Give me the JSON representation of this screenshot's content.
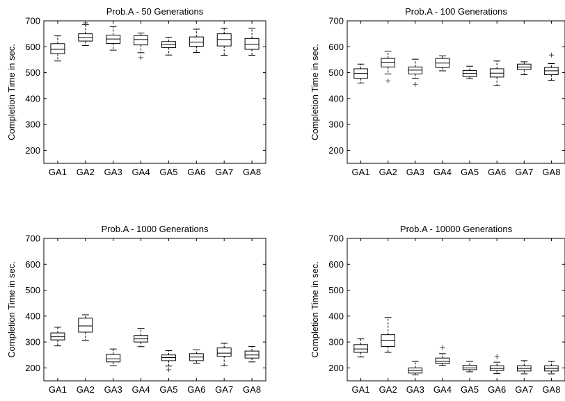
{
  "chart_data": [
    {
      "type": "box",
      "title": "Prob.A - 50 Generations",
      "xlabel": "",
      "ylabel": "Completion Time in sec.",
      "ylim": [
        150,
        700
      ],
      "yticks": [
        200,
        300,
        400,
        500,
        600,
        700
      ],
      "categories": [
        "GA1",
        "GA2",
        "GA3",
        "GA4",
        "GA5",
        "GA6",
        "GA7",
        "GA8"
      ],
      "boxes": [
        {
          "min": 545,
          "q1": 573,
          "median": 590,
          "q3": 612,
          "max": 642,
          "outliers": []
        },
        {
          "min": 605,
          "q1": 622,
          "median": 635,
          "q3": 650,
          "max": 685,
          "outliers": [
            692
          ]
        },
        {
          "min": 587,
          "q1": 613,
          "median": 630,
          "q3": 645,
          "max": 678,
          "outliers": []
        },
        {
          "min": 577,
          "q1": 607,
          "median": 628,
          "q3": 643,
          "max": 653,
          "outliers": [
            558
          ]
        },
        {
          "min": 568,
          "q1": 597,
          "median": 608,
          "q3": 620,
          "max": 637,
          "outliers": []
        },
        {
          "min": 578,
          "q1": 602,
          "median": 618,
          "q3": 638,
          "max": 668,
          "outliers": []
        },
        {
          "min": 567,
          "q1": 603,
          "median": 628,
          "q3": 650,
          "max": 672,
          "outliers": []
        },
        {
          "min": 567,
          "q1": 590,
          "median": 610,
          "q3": 632,
          "max": 672,
          "outliers": []
        }
      ]
    },
    {
      "type": "box",
      "title": "Prob.A - 100 Generations",
      "xlabel": "",
      "ylabel": "Completion Time in sec.",
      "ylim": [
        150,
        700
      ],
      "yticks": [
        200,
        300,
        400,
        500,
        600,
        700
      ],
      "categories": [
        "GA1",
        "GA2",
        "GA3",
        "GA4",
        "GA5",
        "GA6",
        "GA7",
        "GA8"
      ],
      "boxes": [
        {
          "min": 460,
          "q1": 478,
          "median": 497,
          "q3": 515,
          "max": 533,
          "outliers": []
        },
        {
          "min": 495,
          "q1": 522,
          "median": 540,
          "q3": 555,
          "max": 583,
          "outliers": [
            468
          ]
        },
        {
          "min": 478,
          "q1": 495,
          "median": 510,
          "q3": 522,
          "max": 552,
          "outliers": [
            455
          ]
        },
        {
          "min": 507,
          "q1": 520,
          "median": 537,
          "q3": 555,
          "max": 565,
          "outliers": []
        },
        {
          "min": 477,
          "q1": 485,
          "median": 497,
          "q3": 508,
          "max": 525,
          "outliers": []
        },
        {
          "min": 450,
          "q1": 483,
          "median": 498,
          "q3": 515,
          "max": 545,
          "outliers": []
        },
        {
          "min": 492,
          "q1": 512,
          "median": 522,
          "q3": 533,
          "max": 542,
          "outliers": []
        },
        {
          "min": 470,
          "q1": 492,
          "median": 507,
          "q3": 520,
          "max": 535,
          "outliers": [
            568
          ]
        }
      ]
    },
    {
      "type": "box",
      "title": "Prob.A - 1000 Generations",
      "xlabel": "",
      "ylabel": "Completion Time in sec.",
      "ylim": [
        150,
        700
      ],
      "yticks": [
        200,
        300,
        400,
        500,
        600,
        700
      ],
      "categories": [
        "GA1",
        "GA2",
        "GA3",
        "GA4",
        "GA5",
        "GA6",
        "GA7",
        "GA8"
      ],
      "boxes": [
        {
          "min": 285,
          "q1": 308,
          "median": 320,
          "q3": 335,
          "max": 357,
          "outliers": []
        },
        {
          "min": 307,
          "q1": 338,
          "median": 362,
          "q3": 392,
          "max": 405,
          "outliers": []
        },
        {
          "min": 208,
          "q1": 223,
          "median": 235,
          "q3": 252,
          "max": 273,
          "outliers": []
        },
        {
          "min": 282,
          "q1": 300,
          "median": 312,
          "q3": 325,
          "max": 352,
          "outliers": []
        },
        {
          "min": 207,
          "q1": 228,
          "median": 240,
          "q3": 250,
          "max": 267,
          "outliers": [
            193
          ]
        },
        {
          "min": 217,
          "q1": 228,
          "median": 242,
          "q3": 255,
          "max": 270,
          "outliers": []
        },
        {
          "min": 208,
          "q1": 245,
          "median": 257,
          "q3": 277,
          "max": 295,
          "outliers": []
        },
        {
          "min": 223,
          "q1": 238,
          "median": 250,
          "q3": 265,
          "max": 283,
          "outliers": []
        }
      ]
    },
    {
      "type": "box",
      "title": "Prob.A - 10000 Generations",
      "xlabel": "",
      "ylabel": "Completion Time in sec.",
      "ylim": [
        150,
        700
      ],
      "yticks": [
        200,
        300,
        400,
        500,
        600,
        700
      ],
      "categories": [
        "GA1",
        "GA2",
        "GA3",
        "GA4",
        "GA5",
        "GA6",
        "GA7",
        "GA8"
      ],
      "boxes": [
        {
          "min": 242,
          "q1": 260,
          "median": 273,
          "q3": 290,
          "max": 312,
          "outliers": []
        },
        {
          "min": 260,
          "q1": 283,
          "median": 307,
          "q3": 328,
          "max": 395,
          "outliers": []
        },
        {
          "min": 173,
          "q1": 180,
          "median": 190,
          "q3": 200,
          "max": 225,
          "outliers": []
        },
        {
          "min": 210,
          "q1": 217,
          "median": 225,
          "q3": 238,
          "max": 255,
          "outliers": [
            278
          ]
        },
        {
          "min": 185,
          "q1": 193,
          "median": 200,
          "q3": 210,
          "max": 225,
          "outliers": []
        },
        {
          "min": 178,
          "q1": 190,
          "median": 198,
          "q3": 208,
          "max": 222,
          "outliers": [
            243
          ]
        },
        {
          "min": 177,
          "q1": 188,
          "median": 198,
          "q3": 208,
          "max": 228,
          "outliers": []
        },
        {
          "min": 177,
          "q1": 188,
          "median": 198,
          "q3": 208,
          "max": 225,
          "outliers": []
        }
      ]
    }
  ]
}
